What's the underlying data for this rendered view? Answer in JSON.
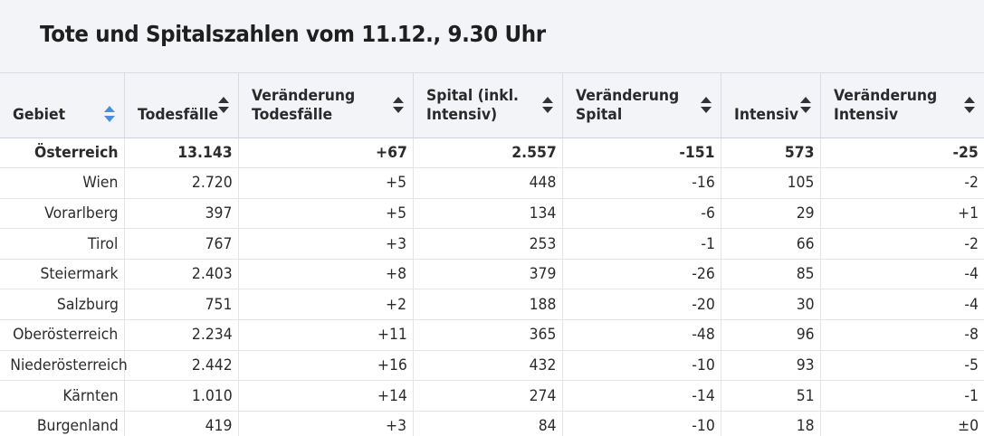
{
  "title": "Tote und Spitalszahlen vom 11.12., 9.30 Uhr",
  "columns": [
    {
      "label_line1": "",
      "label_line2": "Gebiet",
      "sort_active": true
    },
    {
      "label_line1": "",
      "label_line2": "Todesfälle",
      "sort_active": false
    },
    {
      "label_line1": "Veränderung",
      "label_line2": "Todesfälle",
      "sort_active": false
    },
    {
      "label_line1": "Spital (inkl.",
      "label_line2": "Intensiv)",
      "sort_active": false
    },
    {
      "label_line1": "Veränderung",
      "label_line2": "Spital",
      "sort_active": false
    },
    {
      "label_line1": "",
      "label_line2": "Intensiv",
      "sort_active": false
    },
    {
      "label_line1": "Veränderung",
      "label_line2": "Intensiv",
      "sort_active": false
    }
  ],
  "rows": [
    {
      "bold": true,
      "cells": [
        "Österreich",
        "13.143",
        "+67",
        "2.557",
        "-151",
        "573",
        "-25"
      ]
    },
    {
      "bold": false,
      "cells": [
        "Wien",
        "2.720",
        "+5",
        "448",
        "-16",
        "105",
        "-2"
      ]
    },
    {
      "bold": false,
      "cells": [
        "Vorarlberg",
        "397",
        "+5",
        "134",
        "-6",
        "29",
        "+1"
      ]
    },
    {
      "bold": false,
      "cells": [
        "Tirol",
        "767",
        "+3",
        "253",
        "-1",
        "66",
        "-2"
      ]
    },
    {
      "bold": false,
      "cells": [
        "Steiermark",
        "2.403",
        "+8",
        "379",
        "-26",
        "85",
        "-4"
      ]
    },
    {
      "bold": false,
      "cells": [
        "Salzburg",
        "751",
        "+2",
        "188",
        "-20",
        "30",
        "-4"
      ]
    },
    {
      "bold": false,
      "cells": [
        "Oberösterreich",
        "2.234",
        "+11",
        "365",
        "-48",
        "96",
        "-8"
      ]
    },
    {
      "bold": false,
      "cells": [
        "Niederösterreich",
        "2.442",
        "+16",
        "432",
        "-10",
        "93",
        "-5"
      ]
    },
    {
      "bold": false,
      "cells": [
        "Kärnten",
        "1.010",
        "+14",
        "274",
        "-14",
        "51",
        "-1"
      ]
    },
    {
      "bold": false,
      "cells": [
        "Burgenland",
        "419",
        "+3",
        "84",
        "-10",
        "18",
        "±0"
      ]
    }
  ],
  "colors": {
    "header_bg": "#f3f4f8",
    "sort_active": "#4a90d9",
    "sort_inactive": "#333333"
  },
  "icons": {
    "sort": "sort-arrows-icon"
  }
}
